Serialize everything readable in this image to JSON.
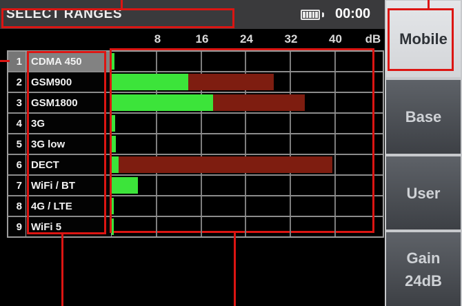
{
  "header": {
    "title": "SELECT RANGES",
    "time": "00:00",
    "battery_icon": "battery-full-icon",
    "battery_level": "full"
  },
  "chart_data": {
    "type": "bar",
    "orientation": "horizontal",
    "title": "SELECT RANGES",
    "row_numbers": [
      "1",
      "2",
      "3",
      "4",
      "5",
      "6",
      "7",
      "8",
      "9"
    ],
    "categories": [
      "CDMA 450",
      "GSM900",
      "GSM1800",
      "3G",
      "3G low",
      "DECT",
      "WiFi / BT",
      "4G / LTE",
      "WiFi 5"
    ],
    "series": [
      {
        "name": "current-level-green",
        "color": "#3ce43a",
        "values": [
          0.5,
          13.7,
          18.2,
          0.6,
          0.7,
          1.2,
          4.7,
          0.4,
          0.4
        ]
      },
      {
        "name": "peak-hold-red",
        "color": "#7e1d10",
        "values": [
          0,
          29,
          34.5,
          0,
          0,
          39.5,
          0,
          0,
          0
        ]
      }
    ],
    "xlabel": "dB",
    "xlim": [
      0,
      48.5
    ],
    "xticks": [
      8,
      16,
      24,
      32,
      40
    ],
    "grid": true,
    "legend": false,
    "selected_index": 0
  },
  "side_buttons": [
    {
      "label": "Mobile",
      "active": true
    },
    {
      "label": "Base",
      "active": false
    },
    {
      "label": "User",
      "active": false
    },
    {
      "label": "Gain",
      "label2": "24dB",
      "active": false
    }
  ],
  "annotation": {
    "color": "#dc1512",
    "note": "red documentation callout boxes around title, band-name column, level chart and Mobile button"
  }
}
